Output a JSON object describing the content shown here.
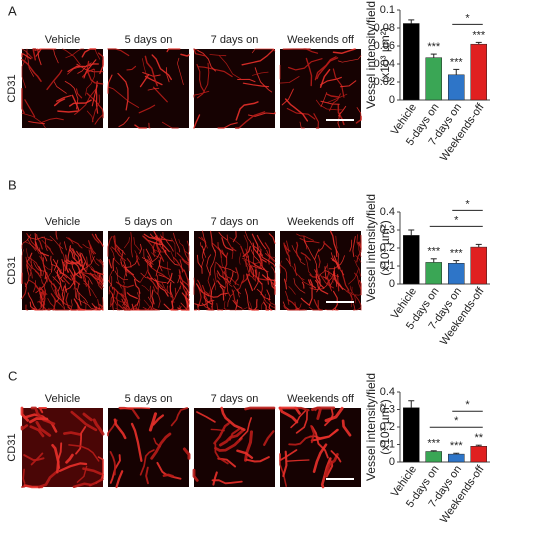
{
  "figure": {
    "panels": [
      {
        "label": "A",
        "row_label": "CD31",
        "columns": [
          "Vehicle",
          "5 days on",
          "7 days on",
          "Weekends off"
        ]
      },
      {
        "label": "B",
        "row_label": "CD31",
        "columns": [
          "Vehicle",
          "5 days on",
          "7 days on",
          "Weekends off"
        ]
      },
      {
        "label": "C",
        "row_label": "CD31",
        "columns": [
          "Vehicle",
          "5 days on",
          "7 days on",
          "Weekends off"
        ]
      }
    ]
  },
  "chart_data": [
    {
      "type": "bar",
      "ylabel": "Vessel intensity/field",
      "ylabel_unit": "(x10³ µm²)",
      "categories": [
        "Vehicle",
        "5-days on",
        "7-days on",
        "Weekends-off"
      ],
      "values": [
        0.085,
        0.047,
        0.028,
        0.062
      ],
      "errors": [
        0.004,
        0.004,
        0.006,
        0.002
      ],
      "colors": [
        "#000000",
        "#3aa655",
        "#2e75c8",
        "#e02020"
      ],
      "ylim": [
        0,
        0.1
      ],
      "yticks": [
        0,
        0.02,
        0.04,
        0.06,
        0.08,
        0.1
      ],
      "annotations": [
        {
          "text": "***",
          "category": "5-days on"
        },
        {
          "text": "***",
          "category": "7-days on"
        },
        {
          "text": "***",
          "category": "Weekends-off"
        }
      ],
      "comparisons": [
        {
          "text": "*",
          "from": "7-days on",
          "to": "Weekends-off"
        }
      ]
    },
    {
      "type": "bar",
      "ylabel": "Vessel intensity/field",
      "ylabel_unit": "(x10³ µm²)",
      "categories": [
        "Vehicle",
        "5-days on",
        "7-days on",
        "Weekends-off"
      ],
      "values": [
        0.27,
        0.12,
        0.115,
        0.205
      ],
      "errors": [
        0.03,
        0.02,
        0.015,
        0.015
      ],
      "colors": [
        "#000000",
        "#3aa655",
        "#2e75c8",
        "#e02020"
      ],
      "ylim": [
        0,
        0.4
      ],
      "yticks": [
        0,
        0.1,
        0.2,
        0.3,
        0.4
      ],
      "annotations": [
        {
          "text": "***",
          "category": "5-days on"
        },
        {
          "text": "***",
          "category": "7-days on"
        }
      ],
      "comparisons": [
        {
          "text": "*",
          "from": "5-days on",
          "to": "Weekends-off"
        },
        {
          "text": "*",
          "from": "7-days on",
          "to": "Weekends-off"
        }
      ]
    },
    {
      "type": "bar",
      "ylabel": "Vessel intensity/field",
      "ylabel_unit": "(x10³ µm²)",
      "categories": [
        "Vehicle",
        "5-days on",
        "7-days on",
        "Weekends-off"
      ],
      "values": [
        0.31,
        0.06,
        0.045,
        0.09
      ],
      "errors": [
        0.04,
        0.004,
        0.005,
        0.006
      ],
      "colors": [
        "#000000",
        "#3aa655",
        "#2e75c8",
        "#e02020"
      ],
      "ylim": [
        0,
        0.4
      ],
      "yticks": [
        0,
        0.1,
        0.2,
        0.3,
        0.4
      ],
      "annotations": [
        {
          "text": "***",
          "category": "5-days on"
        },
        {
          "text": "***",
          "category": "7-days on"
        },
        {
          "text": "**",
          "category": "Weekends-off"
        }
      ],
      "comparisons": [
        {
          "text": "*",
          "from": "5-days on",
          "to": "Weekends-off"
        },
        {
          "text": "*",
          "from": "7-days on",
          "to": "Weekends-off"
        }
      ]
    }
  ]
}
